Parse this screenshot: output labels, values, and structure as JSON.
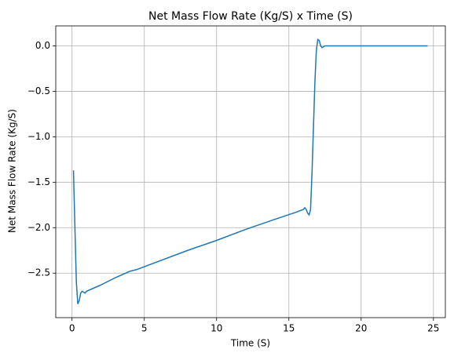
{
  "chart_data": {
    "type": "line",
    "title": "Net Mass Flow Rate (Kg/S) x Time (S)",
    "xlabel": "Time (S)",
    "ylabel": "Net Mass Flow Rate (Kg/S)",
    "x": [
      0.1,
      0.2,
      0.3,
      0.4,
      0.5,
      0.6,
      0.7,
      0.8,
      0.9,
      1.0,
      2,
      3,
      4,
      4.5,
      5,
      8,
      10,
      12,
      14,
      15.5,
      16,
      16.1,
      16.2,
      16.3,
      16.4,
      16.5,
      16.6,
      16.7,
      16.8,
      16.9,
      17.0,
      17.1,
      17.2,
      17.3,
      17.5,
      20,
      24.6
    ],
    "series": [
      {
        "name": "Net Mass Flow Rate",
        "color": "#1f77b4",
        "values": [
          -1.37,
          -2.0,
          -2.6,
          -2.84,
          -2.8,
          -2.72,
          -2.7,
          -2.71,
          -2.72,
          -2.7,
          -2.63,
          -2.55,
          -2.48,
          -2.46,
          -2.43,
          -2.25,
          -2.14,
          -2.02,
          -1.91,
          -1.83,
          -1.8,
          -1.78,
          -1.8,
          -1.84,
          -1.86,
          -1.8,
          -1.4,
          -0.9,
          -0.4,
          -0.05,
          0.07,
          0.06,
          0.0,
          -0.02,
          0.0,
          0.0,
          0.0
        ]
      }
    ],
    "xlim": [
      -1.125,
      25.825
    ],
    "ylim": [
      -2.99,
      0.22
    ],
    "xticks": [
      0,
      5,
      10,
      15,
      20,
      25
    ],
    "yticks": [
      {
        "value": -2.5,
        "label": "−2.5"
      },
      {
        "value": -2.0,
        "label": "−2.0"
      },
      {
        "value": -1.5,
        "label": "−1.5"
      },
      {
        "value": -1.0,
        "label": "−1.0"
      },
      {
        "value": -0.5,
        "label": "−0.5"
      },
      {
        "value": 0,
        "label": "0.0"
      }
    ],
    "grid": true
  }
}
